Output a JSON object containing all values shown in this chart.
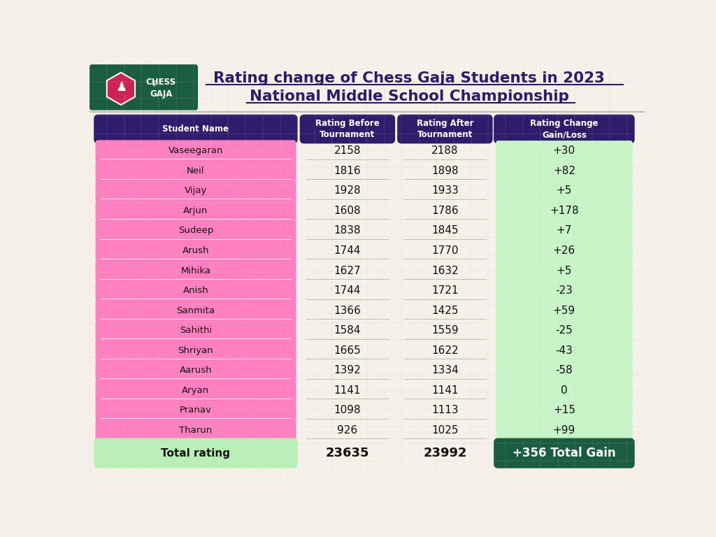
{
  "title_line1": "Rating change of Chess Gaja Students in 2023",
  "title_line2": "National Middle School Championship",
  "title_color": "#2d1b6b",
  "bg_color": "#f5f0e8",
  "header_bg": "#2d1b6b",
  "header_text_color": "#ffffff",
  "name_col_bg": "#ff80c0",
  "total_row_bg": "#b8f0b8",
  "total_gain_bg": "#1a5c40",
  "col_headers": [
    "Student Name",
    "Rating Before\nTournament",
    "Rating After\nTournament",
    "Rating Change\nGain/Loss"
  ],
  "students": [
    "Vaseegaran",
    "Neil",
    "Vijay",
    "Arjun",
    "Sudeep",
    "Arush",
    "Mihika",
    "Anish",
    "Sanmita",
    "Sahithi",
    "Shriyan",
    "Aarush",
    "Aryan",
    "Pranav",
    "Tharun"
  ],
  "rating_before": [
    2158,
    1816,
    1928,
    1608,
    1838,
    1744,
    1627,
    1744,
    1366,
    1584,
    1665,
    1392,
    1141,
    1098,
    926
  ],
  "rating_after": [
    2188,
    1898,
    1933,
    1786,
    1845,
    1770,
    1632,
    1721,
    1425,
    1559,
    1622,
    1334,
    1141,
    1113,
    1025
  ],
  "rating_change": [
    "+30",
    "+82",
    "+5",
    "+178",
    "+7",
    "+26",
    "+5",
    "-23",
    "+59",
    "-25",
    "-43",
    "-58",
    "0",
    "+15",
    "+99"
  ],
  "total_before": "23635",
  "total_after": "23992",
  "total_gain": "+356 Total Gain",
  "logo_bg": "#1a5c40",
  "logo_hex_color": "#cc2255"
}
